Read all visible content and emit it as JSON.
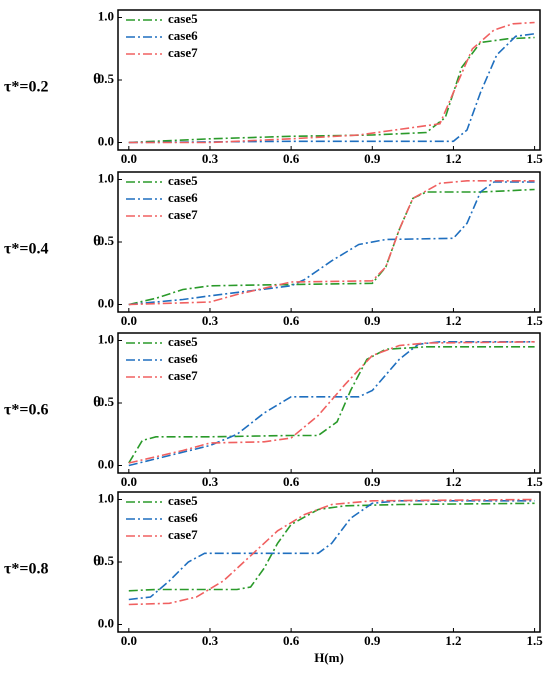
{
  "chart_data": [
    {
      "type": "line",
      "panel_label": "τ*=0.2",
      "ylabel": "θ",
      "legend": "upper left",
      "grid": false,
      "xlim": [
        -0.04,
        1.52
      ],
      "ylim": [
        -0.06,
        1.06
      ],
      "xticks": [
        {
          "value": 0,
          "label": "0.0"
        },
        {
          "value": 0.3,
          "label": "0.3"
        },
        {
          "value": 0.6,
          "label": "0.6"
        },
        {
          "value": 0.9,
          "label": "0.9"
        },
        {
          "value": 1.2,
          "label": "1.2"
        },
        {
          "value": 1.5,
          "label": "1.5"
        }
      ],
      "yticks": [
        {
          "value": 0,
          "label": "0.0"
        },
        {
          "value": 0.5,
          "label": "0.5"
        },
        {
          "value": 1,
          "label": "1.0"
        }
      ],
      "series": [
        {
          "name": "case5",
          "color": "#2a9a2a",
          "x": [
            0,
            0.3,
            0.6,
            0.9,
            1.1,
            1.17,
            1.23,
            1.3,
            1.4,
            1.5
          ],
          "values": [
            0,
            0.03,
            0.05,
            0.06,
            0.08,
            0.2,
            0.6,
            0.8,
            0.83,
            0.84
          ]
        },
        {
          "name": "case6",
          "color": "#1f6fbf",
          "x": [
            0,
            0.6,
            1.2,
            1.25,
            1.3,
            1.36,
            1.43,
            1.5
          ],
          "values": [
            0,
            0.01,
            0.01,
            0.1,
            0.4,
            0.7,
            0.85,
            0.87
          ]
        },
        {
          "name": "case7",
          "color": "#f06060",
          "x": [
            0,
            0.3,
            0.6,
            0.85,
            1.05,
            1.15,
            1.2,
            1.27,
            1.35,
            1.42,
            1.5
          ],
          "values": [
            0,
            0,
            0.03,
            0.06,
            0.12,
            0.15,
            0.4,
            0.75,
            0.9,
            0.95,
            0.96
          ]
        }
      ]
    },
    {
      "type": "line",
      "panel_label": "τ*=0.4",
      "ylabel": "θ",
      "legend": "upper left",
      "grid": false,
      "xlim": [
        -0.04,
        1.52
      ],
      "ylim": [
        -0.06,
        1.06
      ],
      "xticks": [
        {
          "value": 0,
          "label": "0.0"
        },
        {
          "value": 0.3,
          "label": "0.3"
        },
        {
          "value": 0.6,
          "label": "0.6"
        },
        {
          "value": 0.9,
          "label": "0.9"
        },
        {
          "value": 1.2,
          "label": "1.2"
        },
        {
          "value": 1.5,
          "label": "1.5"
        }
      ],
      "yticks": [
        {
          "value": 0,
          "label": "0.0"
        },
        {
          "value": 0.5,
          "label": "0.5"
        },
        {
          "value": 1,
          "label": "1.0"
        }
      ],
      "series": [
        {
          "name": "case5",
          "color": "#2a9a2a",
          "x": [
            0,
            0.1,
            0.2,
            0.3,
            0.6,
            0.9,
            0.95,
            1.0,
            1.05,
            1.1,
            1.3,
            1.5
          ],
          "values": [
            0,
            0.05,
            0.12,
            0.15,
            0.16,
            0.17,
            0.3,
            0.6,
            0.85,
            0.9,
            0.9,
            0.92
          ]
        },
        {
          "name": "case6",
          "color": "#1f6fbf",
          "x": [
            0,
            0.2,
            0.3,
            0.6,
            0.65,
            0.75,
            0.85,
            0.95,
            1.2,
            1.25,
            1.3,
            1.35,
            1.5
          ],
          "values": [
            0,
            0.04,
            0.07,
            0.15,
            0.2,
            0.35,
            0.48,
            0.52,
            0.53,
            0.65,
            0.9,
            0.98,
            0.98
          ]
        },
        {
          "name": "case7",
          "color": "#f06060",
          "x": [
            0,
            0.3,
            0.4,
            0.6,
            0.9,
            0.95,
            1.0,
            1.05,
            1.15,
            1.25,
            1.5
          ],
          "values": [
            0,
            0.02,
            0.08,
            0.18,
            0.19,
            0.3,
            0.6,
            0.85,
            0.97,
            0.99,
            0.99
          ]
        }
      ]
    },
    {
      "type": "line",
      "panel_label": "τ*=0.6",
      "ylabel": "θ",
      "legend": "upper left",
      "grid": false,
      "xlim": [
        -0.04,
        1.52
      ],
      "ylim": [
        -0.06,
        1.06
      ],
      "xticks": [
        {
          "value": 0,
          "label": "0.0"
        },
        {
          "value": 0.3,
          "label": "0.3"
        },
        {
          "value": 0.6,
          "label": "0.6"
        },
        {
          "value": 0.9,
          "label": "0.9"
        },
        {
          "value": 1.2,
          "label": "1.2"
        },
        {
          "value": 1.5,
          "label": "1.5"
        }
      ],
      "yticks": [
        {
          "value": 0,
          "label": "0.0"
        },
        {
          "value": 0.5,
          "label": "0.5"
        },
        {
          "value": 1,
          "label": "1.0"
        }
      ],
      "series": [
        {
          "name": "case5",
          "color": "#2a9a2a",
          "x": [
            0,
            0.05,
            0.1,
            0.3,
            0.6,
            0.7,
            0.77,
            0.82,
            0.88,
            0.95,
            1.1,
            1.5
          ],
          "values": [
            0.02,
            0.2,
            0.23,
            0.23,
            0.24,
            0.24,
            0.35,
            0.6,
            0.85,
            0.93,
            0.95,
            0.95
          ]
        },
        {
          "name": "case6",
          "color": "#1f6fbf",
          "x": [
            0,
            0.15,
            0.3,
            0.4,
            0.5,
            0.6,
            0.85,
            0.9,
            1.0,
            1.07,
            1.15,
            1.5
          ],
          "values": [
            0,
            0.08,
            0.16,
            0.25,
            0.42,
            0.55,
            0.55,
            0.6,
            0.85,
            0.97,
            0.99,
            0.99
          ]
        },
        {
          "name": "case7",
          "color": "#f06060",
          "x": [
            0,
            0.2,
            0.3,
            0.5,
            0.6,
            0.7,
            0.8,
            0.9,
            1.0,
            1.1,
            1.5
          ],
          "values": [
            0.02,
            0.12,
            0.18,
            0.19,
            0.22,
            0.4,
            0.65,
            0.88,
            0.96,
            0.98,
            0.99
          ]
        }
      ]
    },
    {
      "type": "line",
      "panel_label": "τ*=0.8",
      "ylabel": "θ",
      "xlabel": "H(m)",
      "legend": "upper left",
      "grid": false,
      "xlim": [
        -0.04,
        1.52
      ],
      "ylim": [
        -0.06,
        1.06
      ],
      "xticks": [
        {
          "value": 0,
          "label": "0.0"
        },
        {
          "value": 0.3,
          "label": "0.3"
        },
        {
          "value": 0.6,
          "label": "0.6"
        },
        {
          "value": 0.9,
          "label": "0.9"
        },
        {
          "value": 1.2,
          "label": "1.2"
        },
        {
          "value": 1.5,
          "label": "1.5"
        }
      ],
      "yticks": [
        {
          "value": 0,
          "label": "0.0"
        },
        {
          "value": 0.5,
          "label": "0.5"
        },
        {
          "value": 1,
          "label": "1.0"
        }
      ],
      "series": [
        {
          "name": "case5",
          "color": "#2a9a2a",
          "x": [
            0,
            0.1,
            0.4,
            0.45,
            0.5,
            0.55,
            0.6,
            0.7,
            0.8,
            1.0,
            1.5
          ],
          "values": [
            0.27,
            0.28,
            0.28,
            0.3,
            0.45,
            0.65,
            0.8,
            0.92,
            0.95,
            0.96,
            0.97
          ]
        },
        {
          "name": "case6",
          "color": "#1f6fbf",
          "x": [
            0,
            0.08,
            0.15,
            0.22,
            0.28,
            0.7,
            0.75,
            0.82,
            0.9,
            1.0,
            1.5
          ],
          "values": [
            0.2,
            0.22,
            0.35,
            0.5,
            0.57,
            0.57,
            0.65,
            0.85,
            0.97,
            0.99,
            0.99
          ]
        },
        {
          "name": "case7",
          "color": "#f06060",
          "x": [
            0,
            0.15,
            0.25,
            0.35,
            0.45,
            0.55,
            0.65,
            0.75,
            0.9,
            1.5
          ],
          "values": [
            0.16,
            0.17,
            0.22,
            0.35,
            0.55,
            0.75,
            0.88,
            0.96,
            0.99,
            1.0
          ]
        }
      ]
    }
  ]
}
